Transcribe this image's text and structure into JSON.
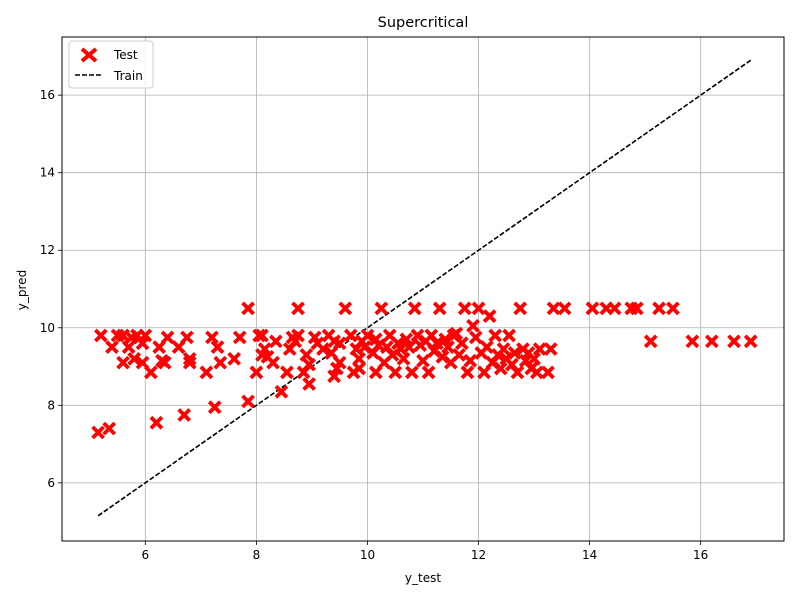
{
  "chart_data": {
    "type": "scatter",
    "title": "Supercritical",
    "xlabel": "y_test",
    "ylabel": "y_pred",
    "xlim": [
      4.5,
      17.5
    ],
    "ylim": [
      4.5,
      17.5
    ],
    "xticks": [
      6,
      8,
      10,
      12,
      14,
      16
    ],
    "yticks": [
      6,
      8,
      10,
      12,
      14,
      16
    ],
    "grid": true,
    "legend": {
      "placement": "top-left",
      "entries": [
        {
          "label": "Test",
          "marker": "X",
          "color": "#ff0000"
        },
        {
          "label": "Train",
          "line": "dashed",
          "color": "#000000"
        }
      ]
    },
    "series": [
      {
        "name": "Train",
        "type": "line",
        "color": "#000000",
        "x": [
          5.15,
          16.9
        ],
        "y": [
          5.15,
          16.9
        ]
      },
      {
        "name": "Test",
        "type": "scatter",
        "color": "#ff0000",
        "points": [
          [
            5.15,
            7.3
          ],
          [
            5.35,
            7.4
          ],
          [
            5.2,
            9.8
          ],
          [
            5.4,
            9.5
          ],
          [
            5.5,
            9.8
          ],
          [
            5.6,
            9.1
          ],
          [
            5.6,
            9.8
          ],
          [
            5.7,
            9.5
          ],
          [
            5.75,
            9.75
          ],
          [
            5.8,
            9.2
          ],
          [
            5.85,
            9.8
          ],
          [
            5.95,
            9.1
          ],
          [
            5.95,
            9.6
          ],
          [
            6.0,
            9.8
          ],
          [
            6.1,
            8.85
          ],
          [
            6.2,
            7.55
          ],
          [
            6.25,
            9.5
          ],
          [
            6.3,
            9.15
          ],
          [
            6.35,
            9.1
          ],
          [
            6.4,
            9.75
          ],
          [
            6.6,
            9.5
          ],
          [
            6.7,
            7.75
          ],
          [
            6.75,
            9.75
          ],
          [
            6.8,
            9.1
          ],
          [
            6.8,
            9.2
          ],
          [
            7.1,
            8.85
          ],
          [
            7.2,
            9.75
          ],
          [
            7.25,
            7.95
          ],
          [
            7.3,
            9.5
          ],
          [
            7.35,
            9.1
          ],
          [
            7.6,
            9.2
          ],
          [
            7.7,
            9.75
          ],
          [
            7.85,
            10.5
          ],
          [
            7.85,
            8.1
          ],
          [
            8.0,
            8.85
          ],
          [
            8.05,
            9.8
          ],
          [
            8.1,
            9.3
          ],
          [
            8.1,
            9.8
          ],
          [
            8.15,
            9.45
          ],
          [
            8.2,
            9.25
          ],
          [
            8.3,
            9.1
          ],
          [
            8.35,
            9.65
          ],
          [
            8.45,
            8.35
          ],
          [
            8.55,
            8.85
          ],
          [
            8.6,
            9.45
          ],
          [
            8.65,
            9.75
          ],
          [
            8.7,
            9.65
          ],
          [
            8.75,
            9.8
          ],
          [
            8.75,
            10.5
          ],
          [
            8.85,
            8.85
          ],
          [
            8.9,
            9.3
          ],
          [
            8.95,
            8.55
          ],
          [
            8.95,
            9.05
          ],
          [
            9.05,
            9.75
          ],
          [
            9.1,
            9.6
          ],
          [
            9.2,
            9.45
          ],
          [
            9.3,
            9.8
          ],
          [
            9.35,
            9.35
          ],
          [
            9.4,
            8.75
          ],
          [
            9.4,
            9.65
          ],
          [
            9.45,
            8.95
          ],
          [
            9.5,
            9.1
          ],
          [
            9.5,
            9.6
          ],
          [
            9.6,
            10.5
          ],
          [
            9.7,
            9.8
          ],
          [
            9.75,
            8.85
          ],
          [
            9.8,
            9.45
          ],
          [
            9.85,
            9.2
          ],
          [
            9.85,
            8.95
          ],
          [
            9.9,
            9.65
          ],
          [
            9.95,
            9.5
          ],
          [
            10.0,
            9.8
          ],
          [
            10.1,
            9.35
          ],
          [
            10.15,
            9.7
          ],
          [
            10.15,
            8.85
          ],
          [
            10.2,
            9.55
          ],
          [
            10.25,
            10.5
          ],
          [
            10.3,
            9.1
          ],
          [
            10.35,
            9.5
          ],
          [
            10.4,
            9.8
          ],
          [
            10.45,
            9.3
          ],
          [
            10.5,
            8.85
          ],
          [
            10.55,
            9.6
          ],
          [
            10.6,
            9.45
          ],
          [
            10.65,
            9.2
          ],
          [
            10.7,
            9.7
          ],
          [
            10.75,
            9.5
          ],
          [
            10.8,
            8.85
          ],
          [
            10.85,
            10.5
          ],
          [
            10.9,
            9.8
          ],
          [
            10.95,
            9.55
          ],
          [
            11.0,
            9.15
          ],
          [
            11.05,
            9.65
          ],
          [
            11.1,
            8.85
          ],
          [
            11.15,
            9.8
          ],
          [
            11.2,
            9.4
          ],
          [
            11.25,
            9.6
          ],
          [
            11.3,
            10.5
          ],
          [
            11.35,
            9.25
          ],
          [
            11.4,
            9.7
          ],
          [
            11.45,
            9.5
          ],
          [
            11.5,
            9.1
          ],
          [
            11.55,
            9.8
          ],
          [
            11.6,
            9.85
          ],
          [
            11.65,
            9.3
          ],
          [
            11.7,
            9.6
          ],
          [
            11.75,
            10.5
          ],
          [
            11.8,
            8.85
          ],
          [
            11.85,
            9.15
          ],
          [
            11.9,
            10.05
          ],
          [
            11.95,
            9.75
          ],
          [
            12.0,
            10.5
          ],
          [
            12.05,
            9.35
          ],
          [
            12.1,
            8.85
          ],
          [
            12.15,
            9.5
          ],
          [
            12.2,
            10.3
          ],
          [
            12.25,
            9.1
          ],
          [
            12.3,
            9.8
          ],
          [
            12.35,
            9.3
          ],
          [
            12.4,
            8.95
          ],
          [
            12.45,
            9.45
          ],
          [
            12.5,
            9.2
          ],
          [
            12.55,
            9.8
          ],
          [
            12.6,
            9.05
          ],
          [
            12.65,
            9.35
          ],
          [
            12.7,
            8.85
          ],
          [
            12.75,
            10.5
          ],
          [
            12.8,
            9.45
          ],
          [
            12.85,
            9.15
          ],
          [
            12.9,
            9.35
          ],
          [
            12.95,
            8.95
          ],
          [
            13.0,
            9.2
          ],
          [
            13.05,
            8.85
          ],
          [
            13.1,
            9.45
          ],
          [
            13.25,
            8.85
          ],
          [
            13.3,
            9.45
          ],
          [
            13.35,
            10.5
          ],
          [
            13.55,
            10.5
          ],
          [
            14.05,
            10.5
          ],
          [
            14.3,
            10.5
          ],
          [
            14.45,
            10.5
          ],
          [
            14.75,
            10.5
          ],
          [
            14.85,
            10.5
          ],
          [
            15.1,
            9.65
          ],
          [
            15.25,
            10.5
          ],
          [
            15.5,
            10.5
          ],
          [
            15.85,
            9.65
          ],
          [
            16.2,
            9.65
          ],
          [
            16.6,
            9.65
          ],
          [
            16.9,
            9.65
          ]
        ]
      }
    ]
  }
}
